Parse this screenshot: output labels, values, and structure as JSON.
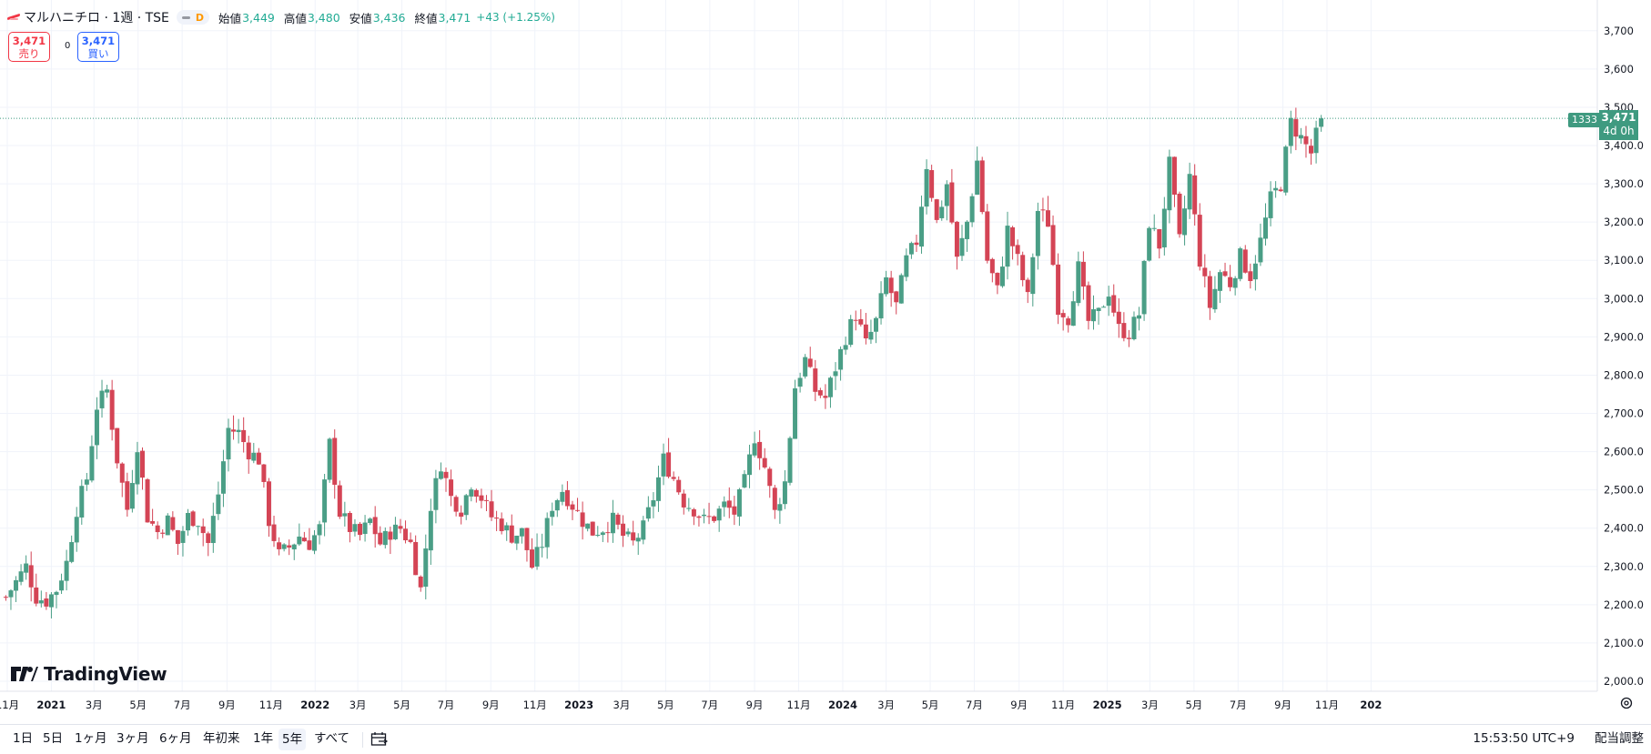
{
  "header": {
    "company": "マルハニチロ",
    "interval": "1週",
    "exchange": "TSE",
    "ticker_line": "マルハニチロ · 1週 · TSE",
    "flag": "D",
    "open_label": "始値",
    "open": "3,449",
    "high_label": "高値",
    "high": "3,480",
    "low_label": "安値",
    "low": "3,436",
    "close_label": "終値",
    "close": "3,471",
    "change": "+43 (+1.25%)"
  },
  "trade": {
    "sell_price": "3,471",
    "sell_label": "売り",
    "spread": "0",
    "buy_price": "3,471",
    "buy_label": "買い"
  },
  "price_label": {
    "price": "3,471",
    "countdown": "4d 0h",
    "volume": "1333"
  },
  "logo": "TradingView",
  "bottom_bar": {
    "timeframes": [
      "1日",
      "5日",
      "1ヶ月",
      "3ヶ月",
      "6ヶ月",
      "年初来",
      "1年",
      "5年",
      "すべて"
    ],
    "active": "5年",
    "clock": "15:53:50 UTC+9",
    "adjust": "配当調整"
  },
  "colors": {
    "up": "#4a9e86",
    "down": "#d44455",
    "grid": "#f0f3fa",
    "text": "#131722"
  },
  "icons": [
    "tradingview-logo-icon",
    "calendar-range-icon",
    "gear-icon"
  ],
  "chart_data": {
    "type": "candlestick",
    "y_ticks": [
      2000,
      2100,
      2200,
      2300,
      2400,
      2500,
      2600,
      2700,
      2800,
      2900,
      3000,
      3100,
      3200,
      3300,
      3400,
      3500,
      3600,
      3700
    ],
    "y_tick_labels": [
      "2,000.0",
      "2,100.0",
      "2,200.0",
      "2,300.0",
      "2,400.0",
      "2,500.0",
      "2,600.0",
      "2,700.0",
      "2,800.0",
      "2,900.0",
      "3,000.0",
      "3,100.0",
      "3,200.0",
      "3,300.0",
      "3,400.0",
      "3,500",
      "3,600",
      "3,700"
    ],
    "ylim": [
      1970,
      3745
    ],
    "x_labels": [
      {
        "label": "11月",
        "date": "2020-11-01"
      },
      {
        "label": "2021",
        "date": "2021-01-01",
        "bold": true
      },
      {
        "label": "3月",
        "date": "2021-03-01"
      },
      {
        "label": "5月",
        "date": "2021-05-01"
      },
      {
        "label": "7月",
        "date": "2021-07-01"
      },
      {
        "label": "9月",
        "date": "2021-09-01"
      },
      {
        "label": "11月",
        "date": "2021-11-01"
      },
      {
        "label": "2022",
        "date": "2022-01-01",
        "bold": true
      },
      {
        "label": "3月",
        "date": "2022-03-01"
      },
      {
        "label": "5月",
        "date": "2022-05-01"
      },
      {
        "label": "7月",
        "date": "2022-07-01"
      },
      {
        "label": "9月",
        "date": "2022-09-01"
      },
      {
        "label": "11月",
        "date": "2022-11-01"
      },
      {
        "label": "2023",
        "date": "2023-01-01",
        "bold": true
      },
      {
        "label": "3月",
        "date": "2023-03-01"
      },
      {
        "label": "5月",
        "date": "2023-05-01"
      },
      {
        "label": "7月",
        "date": "2023-07-01"
      },
      {
        "label": "9月",
        "date": "2023-09-01"
      },
      {
        "label": "11月",
        "date": "2023-11-01"
      },
      {
        "label": "2024",
        "date": "2024-01-01",
        "bold": true
      },
      {
        "label": "3月",
        "date": "2024-03-01"
      },
      {
        "label": "5月",
        "date": "2024-05-01"
      },
      {
        "label": "7月",
        "date": "2024-07-01"
      },
      {
        "label": "9月",
        "date": "2024-09-01"
      },
      {
        "label": "11月",
        "date": "2024-11-01"
      },
      {
        "label": "2025",
        "date": "2025-01-01",
        "bold": true
      },
      {
        "label": "3月",
        "date": "2025-03-01"
      },
      {
        "label": "5月",
        "date": "2025-05-01"
      },
      {
        "label": "7月",
        "date": "2025-07-01"
      },
      {
        "label": "9月",
        "date": "2025-09-01"
      },
      {
        "label": "11月",
        "date": "2025-11-01"
      },
      {
        "label": "202",
        "date": "2026-01-01",
        "bold": true
      }
    ],
    "last_price": 3471,
    "close_anchors": [
      [
        "2020-10-30",
        2220
      ],
      [
        "2020-11-13",
        2260
      ],
      [
        "2020-11-27",
        2300
      ],
      [
        "2020-12-11",
        2220
      ],
      [
        "2020-12-25",
        2210
      ],
      [
        "2021-01-08",
        2240
      ],
      [
        "2021-01-22",
        2310
      ],
      [
        "2021-02-05",
        2450
      ],
      [
        "2021-02-19",
        2530
      ],
      [
        "2021-03-05",
        2720
      ],
      [
        "2021-03-19",
        2760
      ],
      [
        "2021-04-02",
        2580
      ],
      [
        "2021-04-16",
        2450
      ],
      [
        "2021-04-30",
        2620
      ],
      [
        "2021-05-14",
        2430
      ],
      [
        "2021-05-28",
        2390
      ],
      [
        "2021-06-11",
        2420
      ],
      [
        "2021-06-25",
        2360
      ],
      [
        "2021-07-09",
        2430
      ],
      [
        "2021-07-23",
        2420
      ],
      [
        "2021-08-06",
        2360
      ],
      [
        "2021-08-20",
        2490
      ],
      [
        "2021-09-03",
        2660
      ],
      [
        "2021-09-17",
        2650
      ],
      [
        "2021-10-01",
        2600
      ],
      [
        "2021-10-15",
        2580
      ],
      [
        "2021-10-29",
        2420
      ],
      [
        "2021-11-12",
        2330
      ],
      [
        "2021-11-26",
        2350
      ],
      [
        "2021-12-10",
        2380
      ],
      [
        "2021-12-24",
        2360
      ],
      [
        "2022-01-07",
        2400
      ],
      [
        "2022-01-21",
        2620
      ],
      [
        "2022-02-04",
        2440
      ],
      [
        "2022-02-18",
        2400
      ],
      [
        "2022-03-04",
        2380
      ],
      [
        "2022-03-18",
        2420
      ],
      [
        "2022-04-01",
        2360
      ],
      [
        "2022-04-15",
        2390
      ],
      [
        "2022-04-29",
        2400
      ],
      [
        "2022-05-13",
        2360
      ],
      [
        "2022-05-27",
        2240
      ],
      [
        "2022-06-10",
        2460
      ],
      [
        "2022-06-24",
        2570
      ],
      [
        "2022-07-08",
        2480
      ],
      [
        "2022-07-22",
        2450
      ],
      [
        "2022-08-05",
        2520
      ],
      [
        "2022-08-19",
        2480
      ],
      [
        "2022-09-02",
        2430
      ],
      [
        "2022-09-16",
        2410
      ],
      [
        "2022-09-30",
        2380
      ],
      [
        "2022-10-14",
        2390
      ],
      [
        "2022-10-28",
        2300
      ],
      [
        "2022-11-11",
        2360
      ],
      [
        "2022-11-25",
        2460
      ],
      [
        "2022-12-09",
        2500
      ],
      [
        "2022-12-23",
        2460
      ],
      [
        "2023-01-06",
        2420
      ],
      [
        "2023-01-20",
        2390
      ],
      [
        "2023-02-03",
        2400
      ],
      [
        "2023-02-17",
        2420
      ],
      [
        "2023-03-03",
        2380
      ],
      [
        "2023-03-17",
        2360
      ],
      [
        "2023-03-31",
        2400
      ],
      [
        "2023-04-14",
        2480
      ],
      [
        "2023-04-28",
        2580
      ],
      [
        "2023-05-12",
        2530
      ],
      [
        "2023-05-26",
        2470
      ],
      [
        "2023-06-09",
        2450
      ],
      [
        "2023-06-23",
        2420
      ],
      [
        "2023-07-07",
        2430
      ],
      [
        "2023-07-21",
        2460
      ],
      [
        "2023-08-04",
        2440
      ],
      [
        "2023-08-18",
        2520
      ],
      [
        "2023-09-01",
        2640
      ],
      [
        "2023-09-15",
        2560
      ],
      [
        "2023-09-29",
        2440
      ],
      [
        "2023-10-13",
        2520
      ],
      [
        "2023-10-27",
        2770
      ],
      [
        "2023-11-10",
        2840
      ],
      [
        "2023-11-24",
        2760
      ],
      [
        "2023-12-08",
        2740
      ],
      [
        "2023-12-22",
        2820
      ],
      [
        "2024-01-05",
        2900
      ],
      [
        "2024-01-19",
        2960
      ],
      [
        "2024-02-02",
        2880
      ],
      [
        "2024-02-16",
        2940
      ],
      [
        "2024-03-01",
        3050
      ],
      [
        "2024-03-15",
        2980
      ],
      [
        "2024-03-29",
        3100
      ],
      [
        "2024-04-12",
        3150
      ],
      [
        "2024-04-26",
        3350
      ],
      [
        "2024-05-10",
        3200
      ],
      [
        "2024-05-24",
        3300
      ],
      [
        "2024-06-07",
        3100
      ],
      [
        "2024-06-21",
        3200
      ],
      [
        "2024-07-05",
        3360
      ],
      [
        "2024-07-19",
        3100
      ],
      [
        "2024-08-02",
        3020
      ],
      [
        "2024-08-16",
        3180
      ],
      [
        "2024-08-30",
        3100
      ],
      [
        "2024-09-13",
        3000
      ],
      [
        "2024-09-27",
        3230
      ],
      [
        "2024-10-11",
        3200
      ],
      [
        "2024-10-25",
        2980
      ],
      [
        "2024-11-08",
        2950
      ],
      [
        "2024-11-22",
        3080
      ],
      [
        "2024-12-06",
        2940
      ],
      [
        "2024-12-20",
        2960
      ],
      [
        "2025-01-03",
        3020
      ],
      [
        "2025-01-17",
        2920
      ],
      [
        "2025-01-31",
        2910
      ],
      [
        "2025-02-14",
        2960
      ],
      [
        "2025-02-28",
        3200
      ],
      [
        "2025-03-14",
        3140
      ],
      [
        "2025-03-28",
        3350
      ],
      [
        "2025-04-11",
        3150
      ],
      [
        "2025-04-25",
        3320
      ],
      [
        "2025-05-09",
        3100
      ],
      [
        "2025-05-23",
        2980
      ],
      [
        "2025-06-06",
        3070
      ],
      [
        "2025-06-20",
        3040
      ],
      [
        "2025-07-04",
        3110
      ],
      [
        "2025-07-18",
        3060
      ],
      [
        "2025-08-01",
        3150
      ],
      [
        "2025-08-15",
        3260
      ],
      [
        "2025-08-29",
        3300
      ],
      [
        "2025-09-12",
        3460
      ],
      [
        "2025-09-26",
        3420
      ],
      [
        "2025-10-10",
        3380
      ],
      [
        "2025-10-24",
        3471
      ]
    ]
  }
}
